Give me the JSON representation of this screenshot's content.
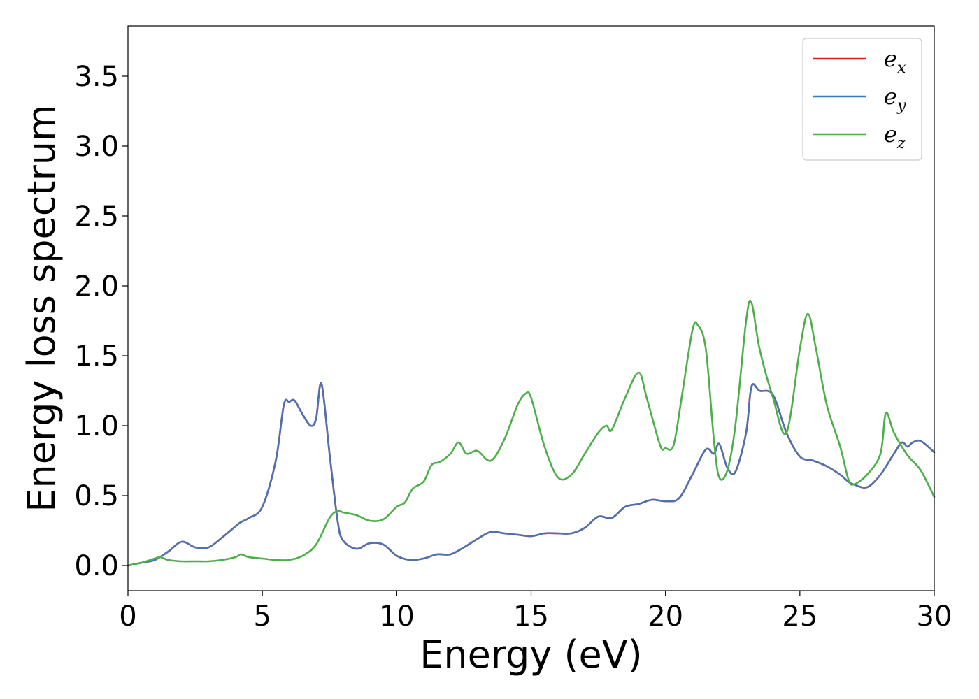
{
  "chart_data": {
    "type": "line",
    "title": "",
    "xlabel": "Energy (eV)",
    "ylabel": "Energy loss spectrum",
    "xlim": [
      0,
      30
    ],
    "ylim": [
      -0.18,
      3.86
    ],
    "xticks": [
      0,
      5,
      10,
      15,
      20,
      25,
      30
    ],
    "yticks": [
      0.0,
      0.5,
      1.0,
      1.5,
      2.0,
      2.5,
      3.0,
      3.5
    ],
    "xtick_labels": [
      "0",
      "5",
      "10",
      "15",
      "20",
      "25",
      "30"
    ],
    "ytick_labels": [
      "0.0",
      "0.5",
      "1.0",
      "1.5",
      "2.0",
      "2.5",
      "3.0",
      "3.5"
    ],
    "grid": false,
    "legend_position": "top-right",
    "legend": [
      {
        "base": "e",
        "sub": "x",
        "color": "#e41a1c"
      },
      {
        "base": "e",
        "sub": "y",
        "color": "#377eb8"
      },
      {
        "base": "e",
        "sub": "z",
        "color": "#4daf4a"
      }
    ],
    "series": [
      {
        "name": "e_x",
        "color": "#e41a1c",
        "x": [
          0,
          0.5,
          1,
          1.5,
          2,
          2.5,
          3,
          3.5,
          4,
          4.2,
          4.5,
          5,
          5.5,
          5.8,
          6,
          6.2,
          6.5,
          6.8,
          7,
          7.2,
          7.5,
          7.8,
          8,
          8.5,
          9,
          9.5,
          10,
          10.5,
          11,
          11.5,
          12,
          12.5,
          13,
          13.5,
          14,
          14.5,
          15,
          15.5,
          16,
          16.5,
          17,
          17.5,
          18,
          18.5,
          19,
          19.5,
          20,
          20.5,
          21,
          21.5,
          21.8,
          22,
          22.3,
          22.6,
          23,
          23.2,
          23.5,
          24,
          24.5,
          25,
          25.5,
          26,
          26.5,
          26.8,
          27,
          27.5,
          28,
          28.5,
          28.8,
          29,
          29.2,
          29.5,
          30
        ],
        "values": [
          0,
          0.02,
          0.04,
          0.1,
          0.17,
          0.13,
          0.13,
          0.2,
          0.28,
          0.31,
          0.34,
          0.42,
          0.75,
          1.15,
          1.17,
          1.18,
          1.08,
          1.0,
          1.05,
          1.3,
          0.8,
          0.32,
          0.18,
          0.12,
          0.16,
          0.15,
          0.07,
          0.04,
          0.05,
          0.08,
          0.08,
          0.13,
          0.19,
          0.24,
          0.23,
          0.22,
          0.21,
          0.23,
          0.23,
          0.23,
          0.27,
          0.35,
          0.34,
          0.42,
          0.44,
          0.47,
          0.46,
          0.48,
          0.65,
          0.83,
          0.8,
          0.87,
          0.7,
          0.67,
          0.95,
          1.28,
          1.25,
          1.22,
          0.95,
          0.78,
          0.75,
          0.71,
          0.65,
          0.6,
          0.58,
          0.56,
          0.65,
          0.8,
          0.88,
          0.85,
          0.88,
          0.89,
          0.81
        ]
      },
      {
        "name": "e_y",
        "color": "#4c72b0",
        "x": [
          0,
          0.5,
          1,
          1.5,
          2,
          2.5,
          3,
          3.5,
          4,
          4.2,
          4.5,
          5,
          5.5,
          5.8,
          6,
          6.2,
          6.5,
          6.8,
          7,
          7.2,
          7.5,
          7.8,
          8,
          8.5,
          9,
          9.5,
          10,
          10.5,
          11,
          11.5,
          12,
          12.5,
          13,
          13.5,
          14,
          14.5,
          15,
          15.5,
          16,
          16.5,
          17,
          17.5,
          18,
          18.5,
          19,
          19.5,
          20,
          20.5,
          21,
          21.5,
          21.8,
          22,
          22.3,
          22.6,
          23,
          23.2,
          23.5,
          24,
          24.5,
          25,
          25.5,
          26,
          26.5,
          26.8,
          27,
          27.5,
          28,
          28.5,
          28.8,
          29,
          29.2,
          29.5,
          30
        ],
        "values": [
          0,
          0.02,
          0.04,
          0.1,
          0.17,
          0.13,
          0.13,
          0.2,
          0.28,
          0.31,
          0.34,
          0.42,
          0.75,
          1.15,
          1.17,
          1.18,
          1.08,
          1.0,
          1.05,
          1.3,
          0.8,
          0.32,
          0.18,
          0.12,
          0.16,
          0.15,
          0.07,
          0.04,
          0.05,
          0.08,
          0.08,
          0.13,
          0.19,
          0.24,
          0.23,
          0.22,
          0.21,
          0.23,
          0.23,
          0.23,
          0.27,
          0.35,
          0.34,
          0.42,
          0.44,
          0.47,
          0.46,
          0.48,
          0.65,
          0.83,
          0.8,
          0.87,
          0.7,
          0.67,
          0.95,
          1.28,
          1.25,
          1.22,
          0.95,
          0.78,
          0.75,
          0.71,
          0.65,
          0.6,
          0.58,
          0.56,
          0.65,
          0.8,
          0.88,
          0.85,
          0.88,
          0.89,
          0.81
        ]
      },
      {
        "name": "e_z",
        "color": "#4daf4a",
        "x": [
          0,
          0.5,
          1,
          1.2,
          1.5,
          2,
          2.5,
          3,
          3.5,
          4,
          4.2,
          4.5,
          5,
          5.5,
          6,
          6.5,
          7,
          7.5,
          7.8,
          8,
          8.5,
          9,
          9.5,
          10,
          10.3,
          10.6,
          11,
          11.3,
          11.6,
          12,
          12.3,
          12.6,
          13,
          13.5,
          14,
          14.5,
          14.8,
          15,
          15.5,
          16,
          16.5,
          17,
          17.5,
          17.8,
          18,
          18.5,
          19,
          19.3,
          19.8,
          20,
          20.3,
          20.6,
          21,
          21.2,
          21.5,
          21.8,
          22,
          22.3,
          22.6,
          23,
          23.2,
          23.5,
          24,
          24.5,
          25,
          25.3,
          25.6,
          26,
          26.5,
          26.8,
          27,
          27.5,
          28,
          28.2,
          28.5,
          29,
          29.5,
          30
        ],
        "values": [
          0,
          0.02,
          0.05,
          0.06,
          0.04,
          0.03,
          0.03,
          0.03,
          0.04,
          0.06,
          0.08,
          0.06,
          0.05,
          0.04,
          0.04,
          0.07,
          0.15,
          0.34,
          0.39,
          0.38,
          0.36,
          0.32,
          0.33,
          0.42,
          0.45,
          0.55,
          0.6,
          0.72,
          0.74,
          0.8,
          0.88,
          0.8,
          0.82,
          0.75,
          0.9,
          1.15,
          1.23,
          1.2,
          0.85,
          0.63,
          0.65,
          0.8,
          0.95,
          1.0,
          0.97,
          1.2,
          1.38,
          1.2,
          0.86,
          0.84,
          0.86,
          1.2,
          1.68,
          1.72,
          1.55,
          0.9,
          0.63,
          0.68,
          1.0,
          1.75,
          1.88,
          1.55,
          1.2,
          0.95,
          1.55,
          1.8,
          1.55,
          1.15,
          0.85,
          0.62,
          0.58,
          0.65,
          0.8,
          1.09,
          0.95,
          0.79,
          0.68,
          0.49
        ]
      }
    ]
  }
}
